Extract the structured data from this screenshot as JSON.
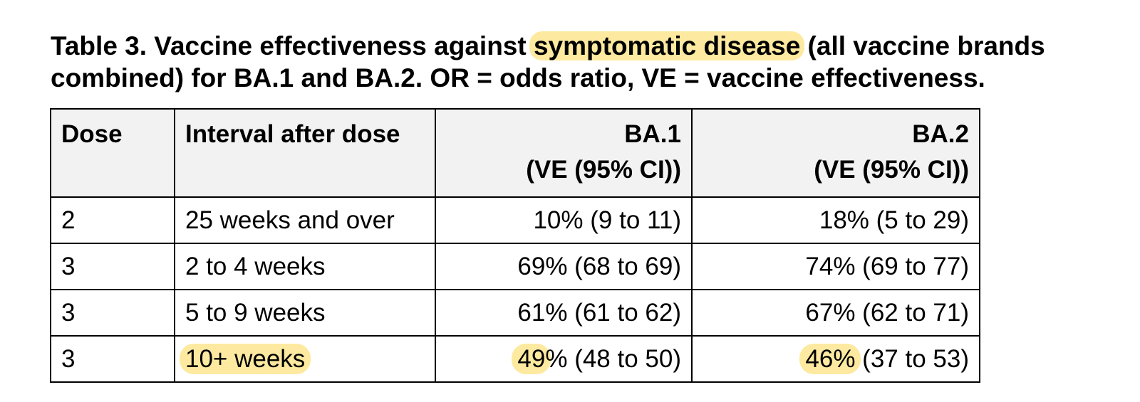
{
  "caption": {
    "before": "Table 3. Vaccine effectiveness against ",
    "highlight": "symptomatic disease",
    "after": " (all vaccine brands combined) for BA.1 and BA.2. OR = odds ratio, VE = vaccine effectiveness."
  },
  "highlight_color": "#fdeaa0",
  "header_bg": "#f2f2f2",
  "columns": {
    "dose": "Dose",
    "interval": "Interval after dose",
    "ba1": "BA.1",
    "ba1_sub": "(VE (95% CI))",
    "ba2": "BA.2",
    "ba2_sub": "(VE (95% CI))"
  },
  "rows": [
    {
      "dose": "2",
      "interval": "25 weeks and over",
      "ba1": "10% (9 to 11)",
      "ba2": "18% (5 to 29)"
    },
    {
      "dose": "3",
      "interval": "2 to 4 weeks",
      "ba1": "69% (68 to 69)",
      "ba2": "74% (69 to 77)"
    },
    {
      "dose": "3",
      "interval": "5 to 9 weeks",
      "ba1": "61% (61 to 62)",
      "ba2": "67% (62 to 71)"
    },
    {
      "dose": "3",
      "interval": "10+ weeks",
      "ba1_hl": "49",
      "ba1_rest": "% (48 to 50)",
      "ba2_hl": "46%",
      "ba2_rest": " (37 to 53)"
    }
  ]
}
